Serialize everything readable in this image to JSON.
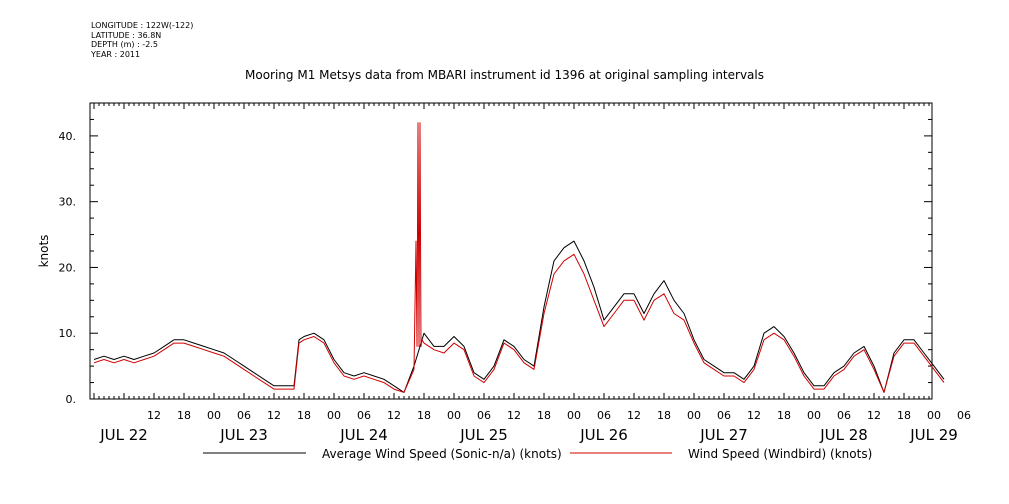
{
  "header": {
    "longitude": "LONGITUDE : 122W(-122)",
    "latitude": "LATITUDE : 36.8N",
    "depth": "DEPTH (m) : -2.5",
    "year": "YEAR : 2011"
  },
  "chart_data": {
    "type": "line",
    "title": "Mooring M1 Metsys data from MBARI instrument id 1396 at original sampling intervals",
    "xlabel": "",
    "ylabel": "knots",
    "xlim_hours": [
      0,
      168
    ],
    "ylim": [
      0,
      45
    ],
    "yticks": [
      0,
      10,
      20,
      30,
      40
    ],
    "ytick_labels": [
      "0.",
      "10.",
      "20.",
      "30.",
      "40."
    ],
    "hour_ticks": [
      {
        "h": 12,
        "label": "12"
      },
      {
        "h": 18,
        "label": "18"
      },
      {
        "h": 24,
        "label": "00"
      },
      {
        "h": 30,
        "label": "06"
      },
      {
        "h": 36,
        "label": "12"
      },
      {
        "h": 42,
        "label": "18"
      },
      {
        "h": 48,
        "label": "00"
      },
      {
        "h": 54,
        "label": "06"
      },
      {
        "h": 60,
        "label": "12"
      },
      {
        "h": 66,
        "label": "18"
      },
      {
        "h": 72,
        "label": "00"
      },
      {
        "h": 78,
        "label": "06"
      },
      {
        "h": 84,
        "label": "12"
      },
      {
        "h": 90,
        "label": "18"
      },
      {
        "h": 96,
        "label": "00"
      },
      {
        "h": 102,
        "label": "06"
      },
      {
        "h": 108,
        "label": "12"
      },
      {
        "h": 114,
        "label": "18"
      },
      {
        "h": 120,
        "label": "00"
      },
      {
        "h": 126,
        "label": "06"
      },
      {
        "h": 132,
        "label": "12"
      },
      {
        "h": 138,
        "label": "18"
      },
      {
        "h": 144,
        "label": "00"
      },
      {
        "h": 150,
        "label": "06"
      },
      {
        "h": 156,
        "label": "12"
      },
      {
        "h": 162,
        "label": "18"
      },
      {
        "h": 168,
        "label": "00"
      },
      {
        "h": 174,
        "label": "06"
      }
    ],
    "day_labels": [
      {
        "h": 6,
        "label": "JUL 22"
      },
      {
        "h": 30,
        "label": "JUL 23"
      },
      {
        "h": 54,
        "label": "JUL 24"
      },
      {
        "h": 78,
        "label": "JUL 25"
      },
      {
        "h": 102,
        "label": "JUL 26"
      },
      {
        "h": 126,
        "label": "JUL 27"
      },
      {
        "h": 150,
        "label": "JUL 28"
      },
      {
        "h": 168,
        "label": "JUL 29"
      }
    ],
    "series": [
      {
        "name": "Average Wind Speed (Sonic-n/a) (knots)",
        "color": "#000000",
        "x_hours": [
          0,
          2,
          4,
          6,
          8,
          10,
          12,
          14,
          16,
          18,
          20,
          22,
          24,
          26,
          28,
          30,
          32,
          34,
          36,
          38,
          40,
          41,
          42,
          44,
          46,
          48,
          50,
          52,
          54,
          56,
          58,
          60,
          62,
          64,
          66,
          68,
          70,
          72,
          74,
          76,
          78,
          80,
          82,
          84,
          86,
          88,
          90,
          92,
          94,
          96,
          98,
          100,
          102,
          104,
          106,
          108,
          110,
          112,
          114,
          116,
          118,
          120,
          122,
          124,
          126,
          128,
          130,
          132,
          134,
          136,
          138,
          140,
          142,
          144,
          146,
          148,
          150,
          152,
          154,
          156,
          158,
          160,
          162,
          164,
          166,
          168,
          170
        ],
        "values": [
          6,
          6.5,
          6,
          6.5,
          6,
          6.5,
          7,
          8,
          9,
          9,
          8.5,
          8,
          7.5,
          7,
          6,
          5,
          4,
          3,
          2,
          2,
          2,
          9,
          9.5,
          10,
          9,
          6,
          4,
          3.5,
          4,
          3.5,
          3,
          2,
          1,
          5,
          10,
          8,
          8,
          9.5,
          8,
          4,
          3,
          5,
          9,
          8,
          6,
          5,
          14,
          21,
          23,
          24,
          21,
          17,
          12,
          14,
          16,
          16,
          13,
          16,
          18,
          15,
          13,
          9,
          6,
          5,
          4,
          4,
          3,
          5,
          10,
          11,
          9.5,
          7,
          4,
          2,
          2,
          4,
          5,
          7,
          8,
          5,
          1,
          7,
          9,
          9,
          7,
          5,
          3
        ]
      },
      {
        "name": "Wind Speed (Windbird) (knots)",
        "color": "#d00000",
        "x_hours": [
          0,
          2,
          4,
          6,
          8,
          10,
          12,
          14,
          16,
          18,
          20,
          22,
          24,
          26,
          28,
          30,
          32,
          34,
          36,
          38,
          40,
          41,
          42,
          44,
          46,
          48,
          50,
          52,
          54,
          56,
          58,
          60,
          62,
          64,
          64.4,
          64.6,
          64.8,
          65,
          65.2,
          65.4,
          65.6,
          66,
          68,
          70,
          72,
          74,
          76,
          78,
          80,
          82,
          84,
          86,
          88,
          90,
          92,
          94,
          96,
          98,
          100,
          102,
          104,
          106,
          108,
          110,
          112,
          114,
          116,
          118,
          120,
          122,
          124,
          126,
          128,
          130,
          132,
          134,
          136,
          138,
          140,
          142,
          144,
          146,
          148,
          150,
          152,
          154,
          156,
          158,
          160,
          162,
          164,
          166,
          168,
          170
        ],
        "values": [
          5.5,
          6,
          5.5,
          6,
          5.5,
          6,
          6.5,
          7.5,
          8.5,
          8.5,
          8,
          7.5,
          7,
          6.5,
          5.5,
          4.5,
          3.5,
          2.5,
          1.5,
          1.5,
          1.5,
          8.5,
          9,
          9.5,
          8.5,
          5.5,
          3.5,
          3,
          3.5,
          3,
          2.5,
          1.5,
          1,
          4.5,
          24,
          8,
          42,
          8,
          42,
          8,
          9,
          8.5,
          7.5,
          7,
          8.5,
          7.5,
          3.5,
          2.5,
          4.5,
          8.5,
          7.5,
          5.5,
          4.5,
          13,
          19,
          21,
          22,
          19,
          15,
          11,
          13,
          15,
          15,
          12,
          15,
          16,
          13,
          12,
          8.5,
          5.5,
          4.5,
          3.5,
          3.5,
          2.5,
          4.5,
          9,
          10,
          9,
          6.5,
          3.5,
          1.5,
          1.5,
          3.5,
          4.5,
          6.5,
          7.5,
          4.5,
          1,
          6.5,
          8.5,
          8.5,
          6.5,
          4.5,
          2.5
        ]
      }
    ]
  }
}
